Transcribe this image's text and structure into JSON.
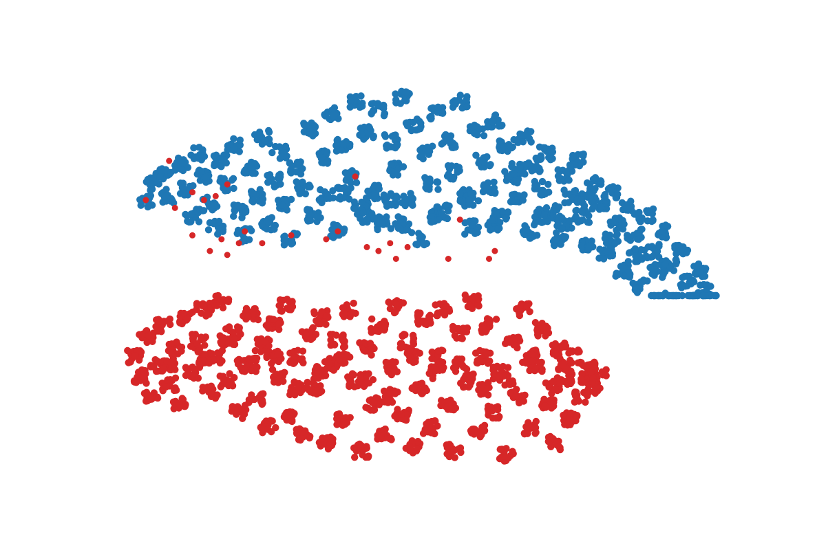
{
  "chart_data": {
    "type": "scatter",
    "title": "",
    "xlabel": "",
    "ylabel": "",
    "axes_visible": false,
    "grid": false,
    "legend": "none",
    "xlim": [
      0,
      100
    ],
    "ylim": [
      0,
      100
    ],
    "series": [
      {
        "name": "cluster-blue",
        "color": "#1f77b4",
        "points": [
          [
            2,
            70
          ],
          [
            3,
            74
          ],
          [
            5,
            77
          ],
          [
            6,
            71
          ],
          [
            8,
            79
          ],
          [
            9,
            73
          ],
          [
            10,
            66
          ],
          [
            11,
            82
          ],
          [
            12,
            76
          ],
          [
            13,
            69
          ],
          [
            14,
            63
          ],
          [
            15,
            80
          ],
          [
            16,
            74
          ],
          [
            17,
            84
          ],
          [
            18,
            67
          ],
          [
            19,
            61
          ],
          [
            20,
            78
          ],
          [
            21,
            71
          ],
          [
            22,
            86
          ],
          [
            23,
            64
          ],
          [
            24,
            75
          ],
          [
            25,
            82
          ],
          [
            26,
            69
          ],
          [
            27,
            60
          ],
          [
            28,
            78
          ],
          [
            29,
            73
          ],
          [
            30,
            88
          ],
          [
            31,
            66
          ],
          [
            32,
            81
          ],
          [
            33,
            71
          ],
          [
            34,
            92
          ],
          [
            35,
            62
          ],
          [
            36,
            84
          ],
          [
            37,
            76
          ],
          [
            38,
            95
          ],
          [
            39,
            68
          ],
          [
            40,
            87
          ],
          [
            41,
            72
          ],
          [
            42,
            93
          ],
          [
            43,
            64
          ],
          [
            44,
            85
          ],
          [
            45,
            78
          ],
          [
            46,
            96
          ],
          [
            47,
            70
          ],
          [
            48,
            89
          ],
          [
            49,
            60
          ],
          [
            50,
            82
          ],
          [
            51,
            74
          ],
          [
            52,
            92
          ],
          [
            53,
            67
          ],
          [
            54,
            85
          ],
          [
            55,
            77
          ],
          [
            56,
            95
          ],
          [
            57,
            71
          ],
          [
            58,
            63
          ],
          [
            59,
            88
          ],
          [
            60,
            80
          ],
          [
            61,
            73
          ],
          [
            62,
            90
          ],
          [
            63,
            66
          ],
          [
            64,
            84
          ],
          [
            65,
            76
          ],
          [
            66,
            70
          ],
          [
            67,
            86
          ],
          [
            68,
            62
          ],
          [
            69,
            79
          ],
          [
            70,
            73
          ],
          [
            71,
            82
          ],
          [
            72,
            67
          ],
          [
            73,
            60
          ],
          [
            74,
            76
          ],
          [
            75,
            71
          ],
          [
            76,
            80
          ],
          [
            77,
            66
          ],
          [
            78,
            59
          ],
          [
            79,
            74
          ],
          [
            80,
            69
          ],
          [
            81,
            56
          ],
          [
            82,
            72
          ],
          [
            83,
            64
          ],
          [
            84,
            52
          ],
          [
            85,
            68
          ],
          [
            86,
            61
          ],
          [
            87,
            48
          ],
          [
            88,
            66
          ],
          [
            89,
            57
          ],
          [
            90,
            45
          ],
          [
            91,
            62
          ],
          [
            92,
            53
          ],
          [
            93,
            42
          ],
          [
            94,
            58
          ],
          [
            95,
            49
          ],
          [
            96,
            44
          ],
          [
            97,
            52
          ],
          [
            98,
            47
          ],
          [
            99,
            43
          ],
          [
            36,
            72
          ],
          [
            44,
            70
          ],
          [
            52,
            66
          ],
          [
            58,
            70
          ],
          [
            62,
            64
          ],
          [
            66,
            78
          ],
          [
            70,
            66
          ],
          [
            74,
            64
          ],
          [
            78,
            70
          ],
          [
            82,
            60
          ],
          [
            86,
            56
          ],
          [
            90,
            52
          ],
          [
            46,
            64
          ],
          [
            40,
            66
          ]
        ]
      },
      {
        "name": "cluster-red",
        "color": "#d62728",
        "points": [
          [
            0,
            30
          ],
          [
            1,
            25
          ],
          [
            2,
            35
          ],
          [
            3,
            20
          ],
          [
            4,
            28
          ],
          [
            5,
            38
          ],
          [
            6,
            23
          ],
          [
            7,
            32
          ],
          [
            8,
            18
          ],
          [
            9,
            40
          ],
          [
            10,
            26
          ],
          [
            11,
            34
          ],
          [
            12,
            42
          ],
          [
            13,
            21
          ],
          [
            14,
            30
          ],
          [
            15,
            44
          ],
          [
            16,
            24
          ],
          [
            17,
            36
          ],
          [
            18,
            16
          ],
          [
            19,
            28
          ],
          [
            20,
            41
          ],
          [
            21,
            19
          ],
          [
            22,
            33
          ],
          [
            23,
            12
          ],
          [
            24,
            38
          ],
          [
            25,
            25
          ],
          [
            26,
            43
          ],
          [
            27,
            15
          ],
          [
            28,
            30
          ],
          [
            29,
            10
          ],
          [
            30,
            36
          ],
          [
            31,
            22
          ],
          [
            32,
            40
          ],
          [
            33,
            8
          ],
          [
            34,
            28
          ],
          [
            35,
            34
          ],
          [
            36,
            14
          ],
          [
            37,
            42
          ],
          [
            38,
            24
          ],
          [
            39,
            6
          ],
          [
            40,
            32
          ],
          [
            41,
            18
          ],
          [
            42,
            38
          ],
          [
            43,
            10
          ],
          [
            44,
            27
          ],
          [
            45,
            43
          ],
          [
            46,
            15
          ],
          [
            47,
            34
          ],
          [
            48,
            7
          ],
          [
            49,
            22
          ],
          [
            50,
            40
          ],
          [
            51,
            12
          ],
          [
            52,
            30
          ],
          [
            53,
            42
          ],
          [
            54,
            18
          ],
          [
            55,
            6
          ],
          [
            56,
            36
          ],
          [
            57,
            24
          ],
          [
            58,
            44
          ],
          [
            59,
            11
          ],
          [
            60,
            30
          ],
          [
            61,
            38
          ],
          [
            62,
            16
          ],
          [
            63,
            26
          ],
          [
            64,
            5
          ],
          [
            65,
            34
          ],
          [
            66,
            20
          ],
          [
            67,
            42
          ],
          [
            68,
            12
          ],
          [
            69,
            28
          ],
          [
            70,
            37
          ],
          [
            71,
            18
          ],
          [
            72,
            8
          ],
          [
            73,
            32
          ],
          [
            74,
            24
          ],
          [
            75,
            14
          ],
          [
            76,
            30
          ],
          [
            77,
            20
          ],
          [
            78,
            27
          ],
          [
            79,
            22
          ],
          [
            80,
            25
          ],
          [
            12,
            30
          ],
          [
            20,
            28
          ],
          [
            28,
            22
          ],
          [
            36,
            30
          ],
          [
            44,
            20
          ],
          [
            52,
            26
          ],
          [
            60,
            22
          ],
          [
            68,
            30
          ],
          [
            74,
            28
          ],
          [
            6,
            28
          ],
          [
            16,
            34
          ],
          [
            24,
            30
          ],
          [
            32,
            26
          ],
          [
            40,
            24
          ],
          [
            48,
            30
          ],
          [
            56,
            28
          ],
          [
            64,
            24
          ],
          [
            72,
            22
          ],
          [
            78,
            25
          ]
        ]
      },
      {
        "name": "red-outliers",
        "color": "#d62728",
        "points": [
          [
            2,
            70
          ],
          [
            6,
            80
          ],
          [
            7,
            68
          ],
          [
            10,
            72
          ],
          [
            12,
            70
          ],
          [
            14,
            71
          ],
          [
            16,
            74
          ],
          [
            15,
            60
          ],
          [
            10,
            61
          ],
          [
            18,
            59
          ],
          [
            19,
            62
          ],
          [
            22,
            59
          ],
          [
            27,
            61
          ],
          [
            33,
            60
          ],
          [
            35,
            62
          ],
          [
            38,
            76
          ],
          [
            40,
            58
          ],
          [
            42,
            57
          ],
          [
            44,
            59
          ],
          [
            45,
            55
          ],
          [
            47,
            58
          ],
          [
            54,
            55
          ],
          [
            56,
            65
          ],
          [
            61,
            55
          ],
          [
            62,
            57
          ],
          [
            13,
            57
          ],
          [
            16,
            56
          ]
        ]
      }
    ]
  }
}
